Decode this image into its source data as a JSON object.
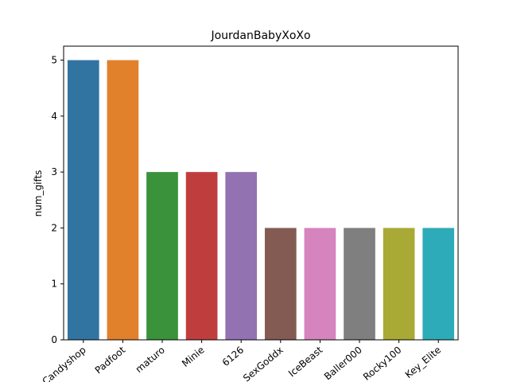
{
  "chart_data": {
    "type": "bar",
    "title": "JourdanBabyXoXo",
    "xlabel": "",
    "ylabel": "num_gifts",
    "ylim": [
      0,
      5.25
    ],
    "yticks": [
      0,
      1,
      2,
      3,
      4,
      5
    ],
    "grid": false,
    "categories": [
      "Candyshop",
      "Padfoot",
      "maturo",
      "Minie",
      "6126",
      "SexGoddx",
      "IceBeast",
      "Baller000",
      "Rocky100",
      "Key_Elite"
    ],
    "values": [
      5,
      5,
      3,
      3,
      3,
      2,
      2,
      2,
      2,
      2
    ],
    "colors": [
      "#3274a1",
      "#e1812c",
      "#3a923a",
      "#c03d3e",
      "#9372b2",
      "#845b53",
      "#d684bd",
      "#7f7f7f",
      "#a9aa35",
      "#2eabb8"
    ]
  }
}
